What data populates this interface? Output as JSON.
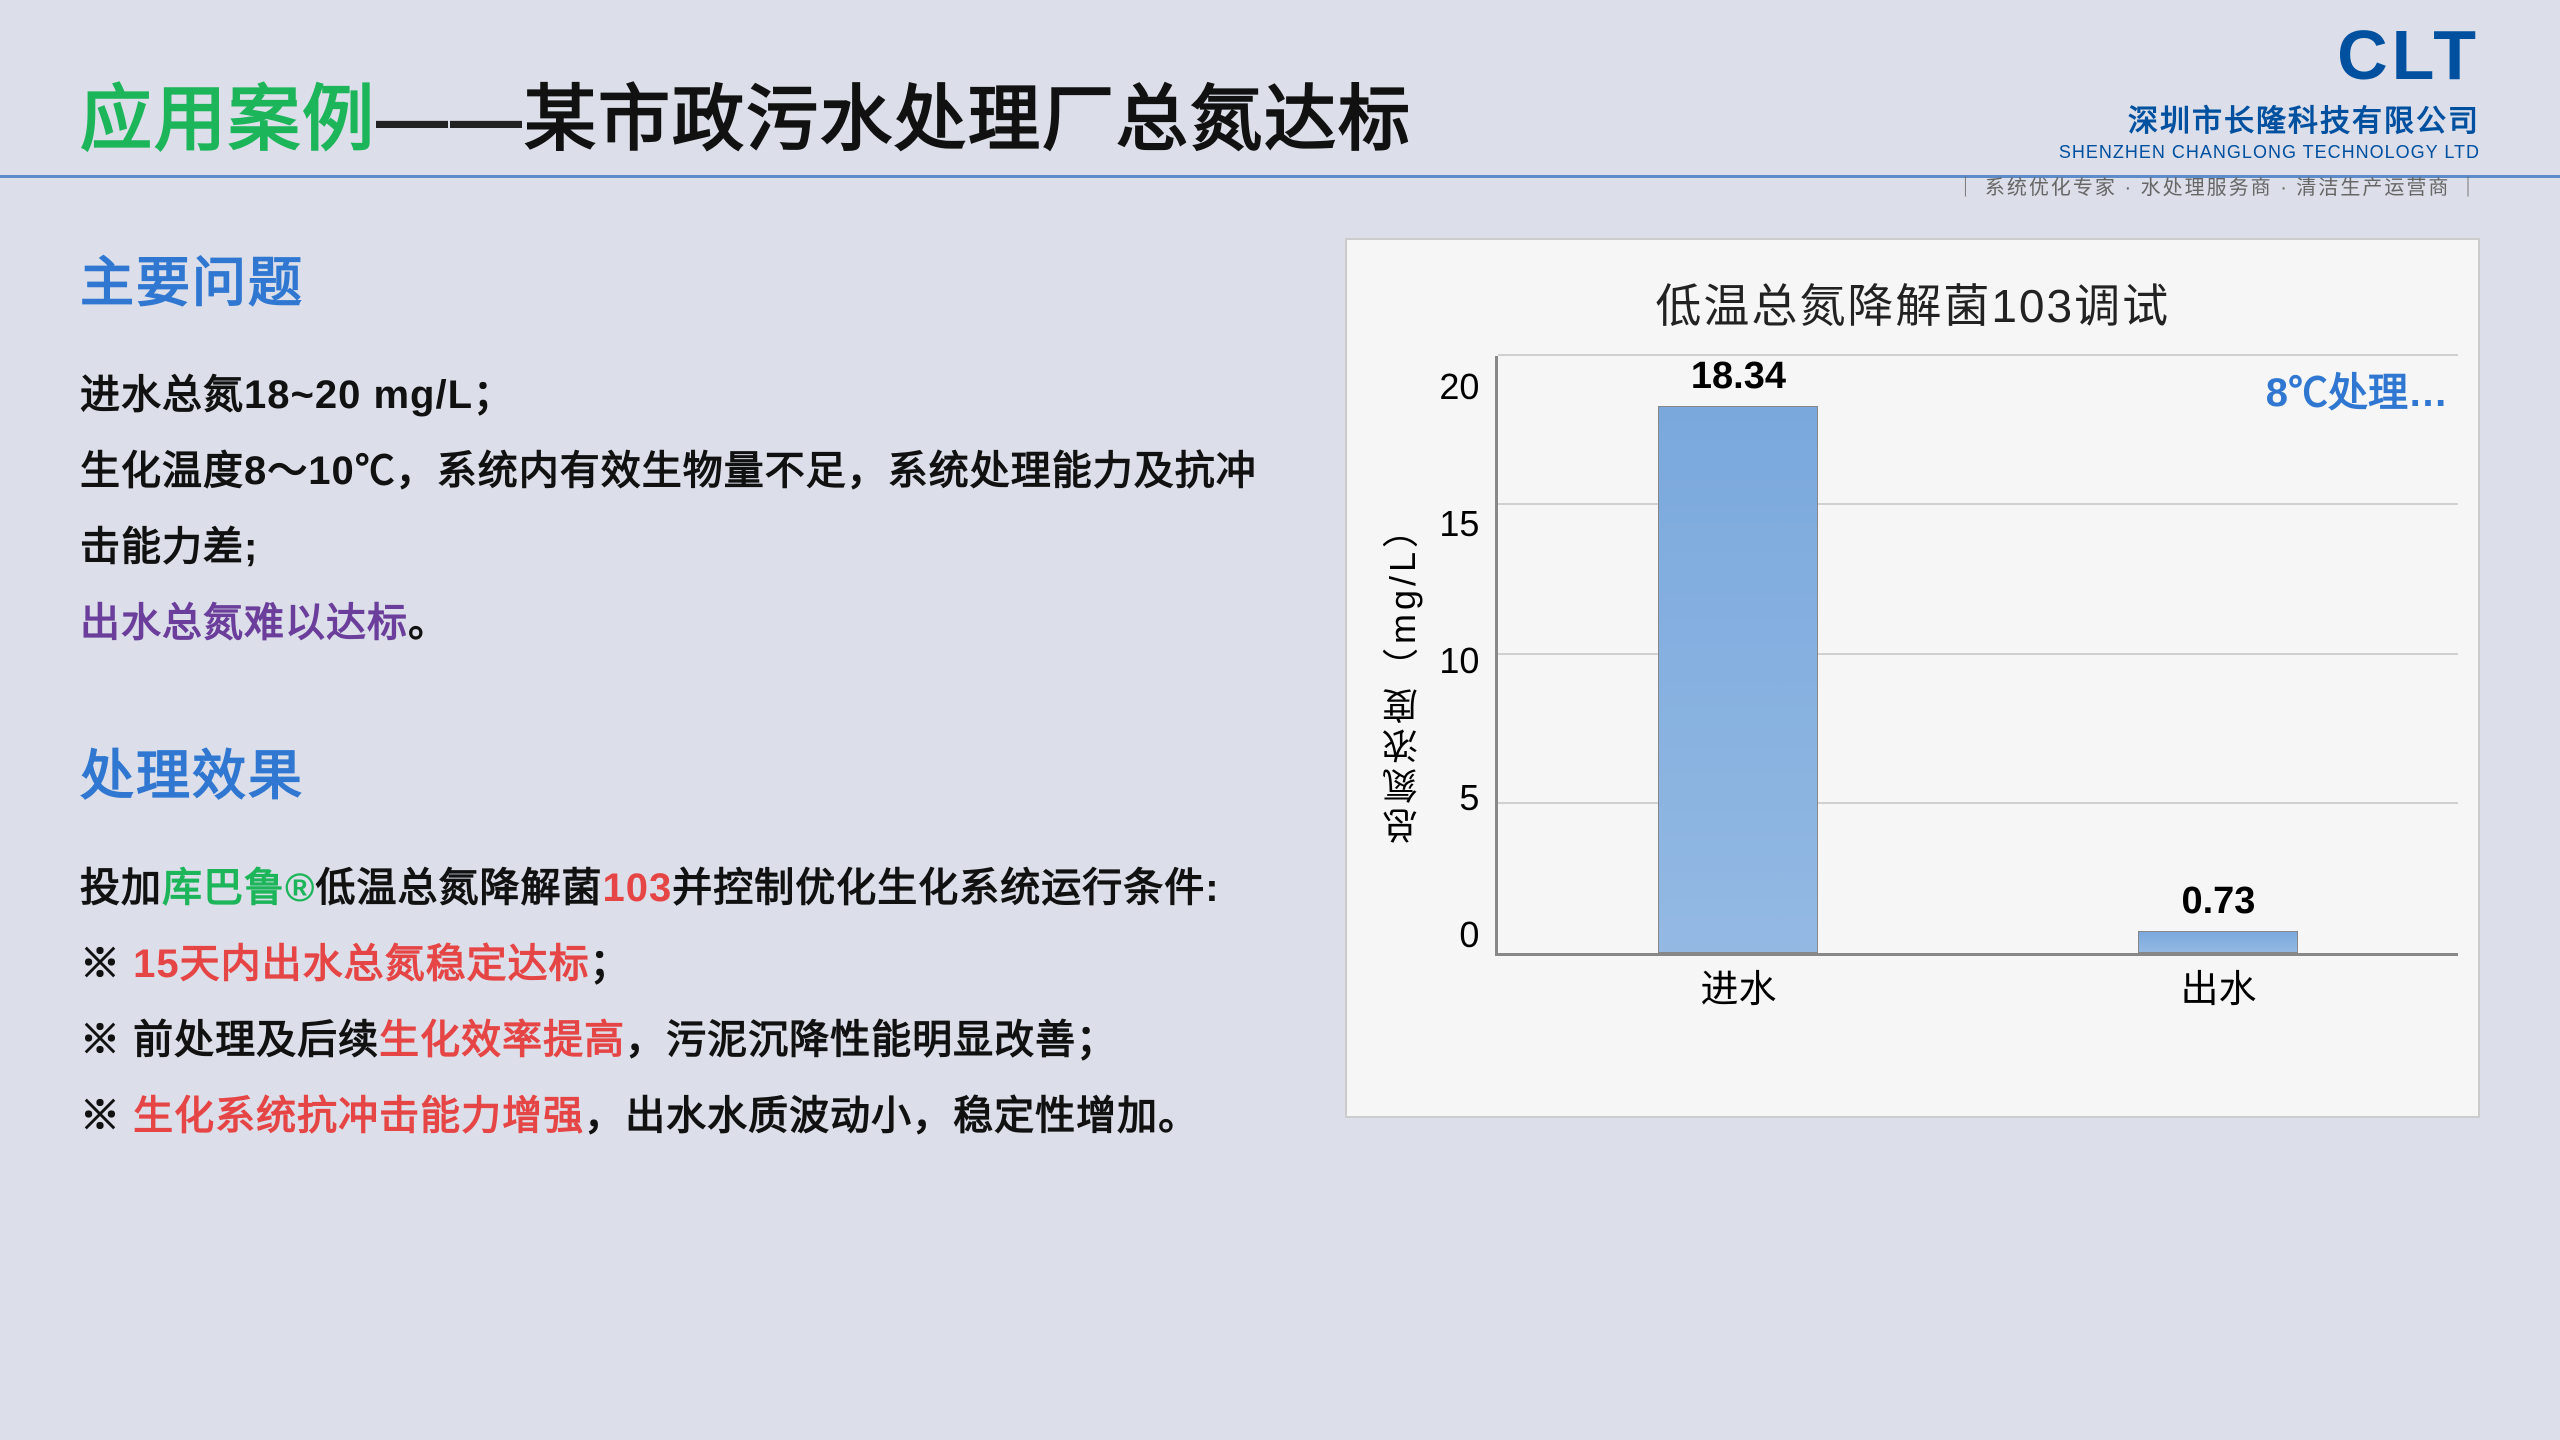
{
  "header": {
    "title_prefix": "应用案例",
    "title_dash": "——",
    "title_main": "某市政污水处理厂总氮达标"
  },
  "logo": {
    "brand": "CLT",
    "company_cn": "深圳市长隆科技有限公司",
    "company_en": "SHENZHEN CHANGLONG TECHNOLOGY LTD",
    "tagline": "｜ 系统优化专家 · 水处理服务商 · 清洁生产运营商 ｜"
  },
  "sections": {
    "problem_h": "主要问题",
    "problem_l1": "进水总氮18~20 mg/L；",
    "problem_l2": "生化温度8～10℃，系统内有效生物量不足，系统处理能力及抗冲击能力差;",
    "problem_l3a": "出水总氮难以达标",
    "problem_l3b": "。",
    "result_h": "处理效果",
    "result_l1a": "投加",
    "result_l1b": "库巴鲁®",
    "result_l1c": "低温总氮降解菌",
    "result_l1d": "103",
    "result_l1e": "并控制优化生化系统运行条件:",
    "result_l2a": "※ ",
    "result_l2b": "15天内出水总氮稳定达标",
    "result_l2c": "；",
    "result_l3a": "※ 前处理及后续",
    "result_l3b": "生化效率提高",
    "result_l3c": "，污泥沉降性能明显改善；",
    "result_l4a": "※ ",
    "result_l4b": "生化系统抗冲击能力增强",
    "result_l4c": "，出水水质波动小，稳定性增加。"
  },
  "chart": {
    "type": "bar",
    "title": "低温总氮降解菌103调试",
    "legend_note": "8℃处理…",
    "ylabel": "总氮浓度（mg/L）",
    "ylim": [
      0,
      20
    ],
    "ytick_step": 5,
    "yticks": [
      "20",
      "15",
      "10",
      "5",
      "0"
    ],
    "categories": [
      "进水",
      "出水"
    ],
    "values": [
      18.34,
      0.73
    ],
    "value_labels": [
      "18.34",
      "0.73"
    ],
    "bar_color": "#7aa8dd",
    "grid_color": "#d0d0d0",
    "axis_color": "#888888",
    "background_color": "#f6f6f6"
  }
}
